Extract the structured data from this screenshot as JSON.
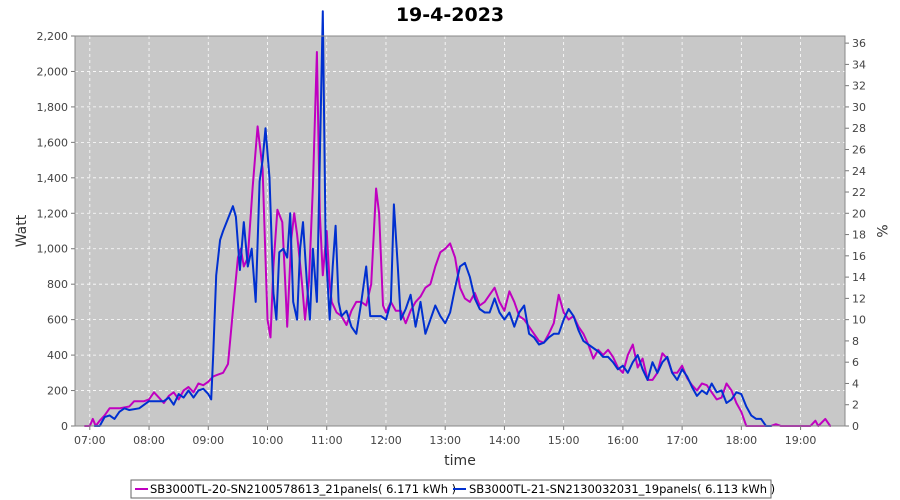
{
  "chart_data": {
    "type": "line",
    "title": "19-4-2023",
    "xlabel": "time",
    "ylabel": "Watt",
    "ylabel_right": "%",
    "x_ticks": [
      "07:00",
      "08:00",
      "09:00",
      "10:00",
      "11:00",
      "12:00",
      "13:00",
      "14:00",
      "15:00",
      "16:00",
      "17:00",
      "18:00",
      "19:00"
    ],
    "x_range": [
      "06:45",
      "19:45"
    ],
    "y_ticks": [
      "0",
      "200",
      "400",
      "600",
      "800",
      "1,000",
      "1,200",
      "1,400",
      "1,600",
      "1,800",
      "2,000",
      "2,200"
    ],
    "ylim": [
      0,
      2200
    ],
    "y2_ticks": [
      "0",
      "2",
      "4",
      "6",
      "8",
      "10",
      "12",
      "14",
      "16",
      "18",
      "20",
      "22",
      "24",
      "26",
      "28",
      "30",
      "32",
      "34",
      "36"
    ],
    "y2lim": [
      0,
      36.67
    ],
    "grid": true,
    "legend_position": "bottom",
    "series": [
      {
        "name": "SB3000TL-20-SN2100578613_21panels( 6.171 kWh )",
        "color": "#c000c0",
        "points": [
          [
            "06:55",
            0
          ],
          [
            "07:00",
            0
          ],
          [
            "07:03",
            40
          ],
          [
            "07:06",
            0
          ],
          [
            "07:10",
            30
          ],
          [
            "07:15",
            60
          ],
          [
            "07:20",
            100
          ],
          [
            "07:30",
            100
          ],
          [
            "07:40",
            110
          ],
          [
            "07:45",
            140
          ],
          [
            "07:55",
            140
          ],
          [
            "08:00",
            150
          ],
          [
            "08:05",
            190
          ],
          [
            "08:10",
            160
          ],
          [
            "08:15",
            130
          ],
          [
            "08:20",
            170
          ],
          [
            "08:25",
            190
          ],
          [
            "08:30",
            150
          ],
          [
            "08:35",
            200
          ],
          [
            "08:40",
            220
          ],
          [
            "08:45",
            190
          ],
          [
            "08:50",
            240
          ],
          [
            "08:55",
            230
          ],
          [
            "09:00",
            250
          ],
          [
            "09:05",
            280
          ],
          [
            "09:10",
            290
          ],
          [
            "09:15",
            300
          ],
          [
            "09:20",
            350
          ],
          [
            "09:25",
            650
          ],
          [
            "09:30",
            950
          ],
          [
            "09:33",
            1000
          ],
          [
            "09:36",
            900
          ],
          [
            "09:40",
            950
          ],
          [
            "09:45",
            1350
          ],
          [
            "09:50",
            1690
          ],
          [
            "09:55",
            1450
          ],
          [
            "10:00",
            600
          ],
          [
            "10:03",
            500
          ],
          [
            "10:06",
            900
          ],
          [
            "10:10",
            1220
          ],
          [
            "10:15",
            1150
          ],
          [
            "10:18",
            800
          ],
          [
            "10:20",
            560
          ],
          [
            "10:24",
            1050
          ],
          [
            "10:27",
            1200
          ],
          [
            "10:30",
            1080
          ],
          [
            "10:35",
            800
          ],
          [
            "10:38",
            600
          ],
          [
            "10:42",
            820
          ],
          [
            "10:46",
            1350
          ],
          [
            "10:50",
            2110
          ],
          [
            "10:53",
            1200
          ],
          [
            "10:56",
            850
          ],
          [
            "11:00",
            1100
          ],
          [
            "11:03",
            800
          ],
          [
            "11:05",
            700
          ],
          [
            "11:10",
            640
          ],
          [
            "11:15",
            620
          ],
          [
            "11:20",
            570
          ],
          [
            "11:25",
            650
          ],
          [
            "11:30",
            700
          ],
          [
            "11:35",
            700
          ],
          [
            "11:40",
            680
          ],
          [
            "11:45",
            800
          ],
          [
            "11:50",
            1340
          ],
          [
            "11:53",
            1200
          ],
          [
            "11:57",
            680
          ],
          [
            "12:00",
            640
          ],
          [
            "12:05",
            700
          ],
          [
            "12:10",
            650
          ],
          [
            "12:15",
            650
          ],
          [
            "12:20",
            580
          ],
          [
            "12:25",
            650
          ],
          [
            "12:30",
            700
          ],
          [
            "12:35",
            730
          ],
          [
            "12:40",
            780
          ],
          [
            "12:45",
            800
          ],
          [
            "12:50",
            900
          ],
          [
            "12:55",
            980
          ],
          [
            "13:00",
            1000
          ],
          [
            "13:05",
            1030
          ],
          [
            "13:10",
            950
          ],
          [
            "13:15",
            780
          ],
          [
            "13:20",
            720
          ],
          [
            "13:25",
            700
          ],
          [
            "13:30",
            750
          ],
          [
            "13:35",
            680
          ],
          [
            "13:40",
            700
          ],
          [
            "13:45",
            740
          ],
          [
            "13:50",
            780
          ],
          [
            "13:55",
            700
          ],
          [
            "14:00",
            650
          ],
          [
            "14:05",
            760
          ],
          [
            "14:10",
            700
          ],
          [
            "14:15",
            620
          ],
          [
            "14:20",
            600
          ],
          [
            "14:25",
            560
          ],
          [
            "14:30",
            520
          ],
          [
            "14:35",
            480
          ],
          [
            "14:40",
            470
          ],
          [
            "14:45",
            520
          ],
          [
            "14:50",
            580
          ],
          [
            "14:55",
            740
          ],
          [
            "15:00",
            640
          ],
          [
            "15:05",
            600
          ],
          [
            "15:10",
            620
          ],
          [
            "15:15",
            560
          ],
          [
            "15:20",
            520
          ],
          [
            "15:25",
            460
          ],
          [
            "15:30",
            380
          ],
          [
            "15:35",
            430
          ],
          [
            "15:40",
            400
          ],
          [
            "15:45",
            430
          ],
          [
            "15:50",
            390
          ],
          [
            "15:55",
            330
          ],
          [
            "16:00",
            300
          ],
          [
            "16:05",
            400
          ],
          [
            "16:10",
            460
          ],
          [
            "16:15",
            330
          ],
          [
            "16:20",
            380
          ],
          [
            "16:25",
            260
          ],
          [
            "16:30",
            260
          ],
          [
            "16:35",
            300
          ],
          [
            "16:40",
            410
          ],
          [
            "16:45",
            380
          ],
          [
            "16:50",
            300
          ],
          [
            "16:55",
            300
          ],
          [
            "17:00",
            340
          ],
          [
            "17:05",
            270
          ],
          [
            "17:10",
            230
          ],
          [
            "17:15",
            200
          ],
          [
            "17:20",
            240
          ],
          [
            "17:25",
            230
          ],
          [
            "17:30",
            190
          ],
          [
            "17:35",
            150
          ],
          [
            "17:40",
            160
          ],
          [
            "17:45",
            240
          ],
          [
            "17:50",
            200
          ],
          [
            "17:55",
            130
          ],
          [
            "18:00",
            80
          ],
          [
            "18:05",
            0
          ],
          [
            "18:30",
            0
          ],
          [
            "18:35",
            10
          ],
          [
            "18:40",
            0
          ],
          [
            "19:10",
            0
          ],
          [
            "19:15",
            30
          ],
          [
            "19:18",
            0
          ],
          [
            "19:25",
            40
          ],
          [
            "19:30",
            0
          ]
        ]
      },
      {
        "name": "SB3000TL-21-SN2130032031_19panels( 6.113 kWh )",
        "color": "#0030d0",
        "points": [
          [
            "07:05",
            0
          ],
          [
            "07:10",
            0
          ],
          [
            "07:15",
            50
          ],
          [
            "07:20",
            60
          ],
          [
            "07:25",
            40
          ],
          [
            "07:30",
            80
          ],
          [
            "07:35",
            100
          ],
          [
            "07:40",
            90
          ],
          [
            "07:50",
            100
          ],
          [
            "08:00",
            140
          ],
          [
            "08:10",
            140
          ],
          [
            "08:15",
            140
          ],
          [
            "08:20",
            160
          ],
          [
            "08:25",
            120
          ],
          [
            "08:30",
            180
          ],
          [
            "08:35",
            160
          ],
          [
            "08:40",
            200
          ],
          [
            "08:45",
            160
          ],
          [
            "08:50",
            200
          ],
          [
            "08:55",
            210
          ],
          [
            "09:00",
            180
          ],
          [
            "09:03",
            150
          ],
          [
            "09:05",
            400
          ],
          [
            "09:08",
            850
          ],
          [
            "09:12",
            1050
          ],
          [
            "09:15",
            1100
          ],
          [
            "09:20",
            1170
          ],
          [
            "09:25",
            1240
          ],
          [
            "09:28",
            1180
          ],
          [
            "09:32",
            880
          ],
          [
            "09:36",
            1150
          ],
          [
            "09:40",
            900
          ],
          [
            "09:44",
            1000
          ],
          [
            "09:48",
            700
          ],
          [
            "09:52",
            1380
          ],
          [
            "09:55",
            1500
          ],
          [
            "09:58",
            1680
          ],
          [
            "10:02",
            1400
          ],
          [
            "10:06",
            750
          ],
          [
            "10:09",
            600
          ],
          [
            "10:12",
            980
          ],
          [
            "10:16",
            1000
          ],
          [
            "10:20",
            950
          ],
          [
            "10:23",
            1200
          ],
          [
            "10:26",
            700
          ],
          [
            "10:30",
            600
          ],
          [
            "10:33",
            1000
          ],
          [
            "10:36",
            1150
          ],
          [
            "10:40",
            800
          ],
          [
            "10:43",
            600
          ],
          [
            "10:46",
            1000
          ],
          [
            "10:50",
            700
          ],
          [
            "10:53",
            1500
          ],
          [
            "10:56",
            2340
          ],
          [
            "10:59",
            1000
          ],
          [
            "11:03",
            600
          ],
          [
            "11:06",
            900
          ],
          [
            "11:09",
            1130
          ],
          [
            "11:12",
            700
          ],
          [
            "11:15",
            620
          ],
          [
            "11:20",
            650
          ],
          [
            "11:25",
            560
          ],
          [
            "11:30",
            520
          ],
          [
            "11:35",
            700
          ],
          [
            "11:40",
            900
          ],
          [
            "11:44",
            620
          ],
          [
            "11:50",
            620
          ],
          [
            "11:55",
            620
          ],
          [
            "12:00",
            600
          ],
          [
            "12:05",
            700
          ],
          [
            "12:08",
            1250
          ],
          [
            "12:12",
            900
          ],
          [
            "12:15",
            600
          ],
          [
            "12:20",
            660
          ],
          [
            "12:25",
            740
          ],
          [
            "12:30",
            560
          ],
          [
            "12:35",
            700
          ],
          [
            "12:40",
            520
          ],
          [
            "12:45",
            600
          ],
          [
            "12:50",
            680
          ],
          [
            "12:55",
            620
          ],
          [
            "13:00",
            580
          ],
          [
            "13:05",
            640
          ],
          [
            "13:10",
            780
          ],
          [
            "13:15",
            900
          ],
          [
            "13:20",
            920
          ],
          [
            "13:25",
            840
          ],
          [
            "13:30",
            720
          ],
          [
            "13:35",
            660
          ],
          [
            "13:40",
            640
          ],
          [
            "13:45",
            640
          ],
          [
            "13:50",
            720
          ],
          [
            "13:55",
            640
          ],
          [
            "14:00",
            600
          ],
          [
            "14:05",
            640
          ],
          [
            "14:10",
            560
          ],
          [
            "14:15",
            640
          ],
          [
            "14:20",
            680
          ],
          [
            "14:25",
            520
          ],
          [
            "14:30",
            500
          ],
          [
            "14:35",
            460
          ],
          [
            "14:40",
            470
          ],
          [
            "14:45",
            500
          ],
          [
            "14:50",
            520
          ],
          [
            "14:55",
            520
          ],
          [
            "15:00",
            600
          ],
          [
            "15:05",
            660
          ],
          [
            "15:10",
            620
          ],
          [
            "15:15",
            540
          ],
          [
            "15:20",
            480
          ],
          [
            "15:25",
            460
          ],
          [
            "15:30",
            440
          ],
          [
            "15:35",
            420
          ],
          [
            "15:40",
            390
          ],
          [
            "15:45",
            390
          ],
          [
            "15:50",
            360
          ],
          [
            "15:55",
            320
          ],
          [
            "16:00",
            340
          ],
          [
            "16:05",
            300
          ],
          [
            "16:10",
            360
          ],
          [
            "16:15",
            400
          ],
          [
            "16:20",
            320
          ],
          [
            "16:25",
            260
          ],
          [
            "16:30",
            360
          ],
          [
            "16:35",
            300
          ],
          [
            "16:40",
            360
          ],
          [
            "16:45",
            390
          ],
          [
            "16:50",
            300
          ],
          [
            "16:55",
            260
          ],
          [
            "17:00",
            320
          ],
          [
            "17:05",
            280
          ],
          [
            "17:10",
            220
          ],
          [
            "17:15",
            170
          ],
          [
            "17:20",
            200
          ],
          [
            "17:25",
            180
          ],
          [
            "17:30",
            240
          ],
          [
            "17:35",
            190
          ],
          [
            "17:40",
            200
          ],
          [
            "17:45",
            130
          ],
          [
            "17:50",
            150
          ],
          [
            "17:55",
            190
          ],
          [
            "18:00",
            180
          ],
          [
            "18:05",
            110
          ],
          [
            "18:10",
            60
          ],
          [
            "18:15",
            40
          ],
          [
            "18:20",
            40
          ],
          [
            "18:25",
            0
          ],
          [
            "18:30",
            0
          ]
        ]
      }
    ]
  }
}
